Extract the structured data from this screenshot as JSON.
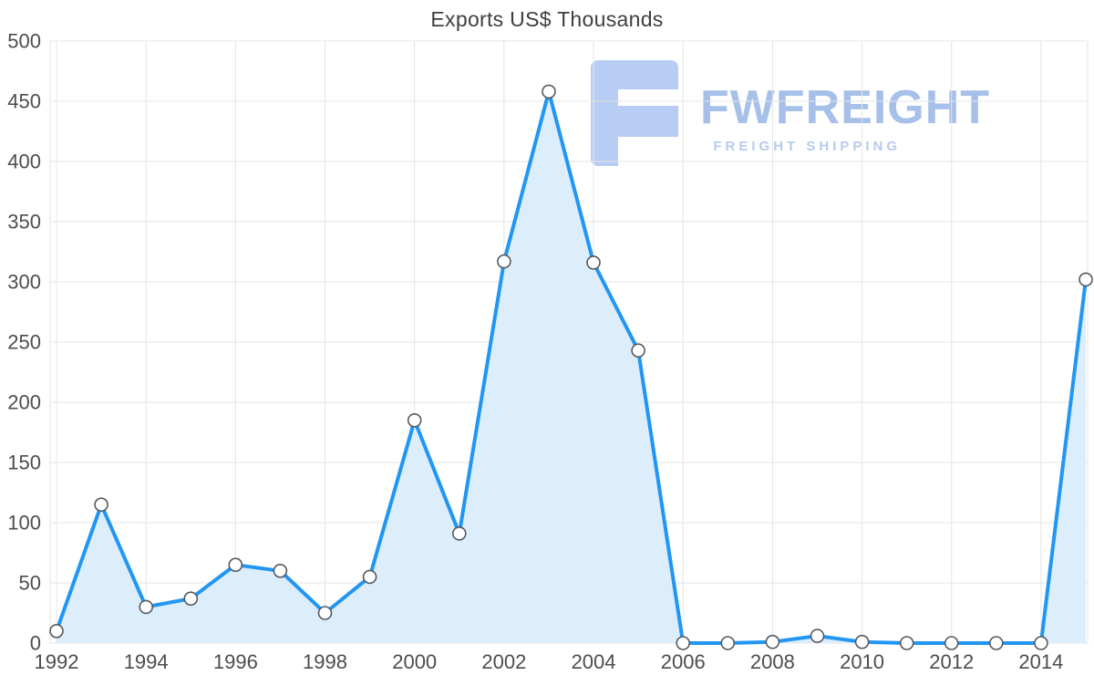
{
  "page": {
    "title": "Exports US$ Thousands"
  },
  "watermark": {
    "brand": "FWFREIGHT",
    "tagline": "FREIGHT SHIPPING",
    "brand_color": "#a6c0ea",
    "tagline_color": "#b6cbee",
    "logo_color": "#b7cdf3"
  },
  "chart_data": {
    "type": "area",
    "title": "Exports US$ Thousands",
    "xlabel": "",
    "ylabel": "",
    "x": [
      1992,
      1993,
      1994,
      1995,
      1996,
      1997,
      1998,
      1999,
      2000,
      2001,
      2002,
      2003,
      2004,
      2005,
      2006,
      2007,
      2008,
      2009,
      2010,
      2011,
      2012,
      2013,
      2014,
      2015
    ],
    "values": [
      10,
      115,
      30,
      37,
      65,
      60,
      25,
      55,
      185,
      91,
      317,
      458,
      316,
      243,
      0,
      0,
      1,
      6,
      1,
      0,
      0,
      0,
      0,
      302
    ],
    "ylim": [
      0,
      500
    ],
    "y_ticks": [
      0,
      50,
      100,
      150,
      200,
      250,
      300,
      350,
      400,
      450,
      500
    ],
    "x_tick_labels": [
      1992,
      1994,
      1996,
      1998,
      2000,
      2002,
      2004,
      2006,
      2008,
      2010,
      2012,
      2014
    ],
    "grid": true,
    "legend": "none",
    "colors": {
      "line": "#2196f3",
      "fill": "#dcedfc",
      "marker_fill": "#ffffff",
      "marker_stroke": "#555a60",
      "grid": "#e4e4e4",
      "label": "#4d4d4d",
      "title": "#3f3f3f"
    }
  }
}
